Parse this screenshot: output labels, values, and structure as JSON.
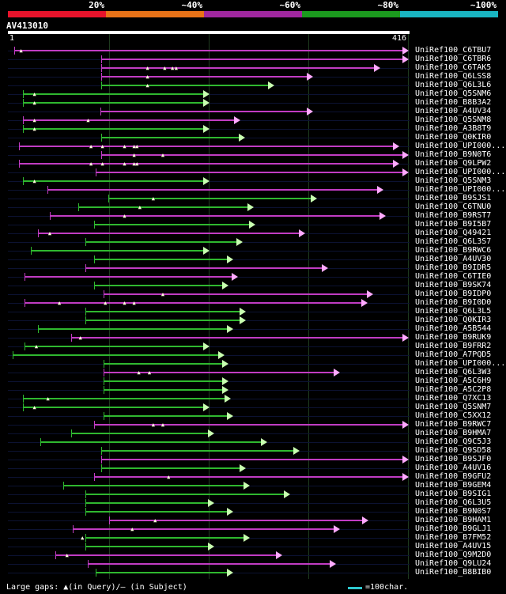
{
  "legend": {
    "labels": [
      "20%",
      "~40%",
      "~60%",
      "~80%",
      "~100%"
    ],
    "colors": [
      "#e8132b",
      "#e97318",
      "#a0279f",
      "#1b9a1e",
      "#19b5c2"
    ]
  },
  "query": {
    "title": "AV413010",
    "start_label": "1",
    "end_label": "416",
    "length": 416
  },
  "colors": {
    "magenta": "#c13cc3",
    "green": "#2fb82f",
    "tri_magenta": "#ffaaff",
    "tri_green": "#c8ffb0"
  },
  "hits": [
    {
      "label": "UniRef100_C6TBU7",
      "color": "magenta",
      "start": 5,
      "end": 416,
      "gaps": [
        12
      ]
    },
    {
      "label": "UniRef100_C6TBR6",
      "color": "magenta",
      "start": 96,
      "end": 416,
      "gaps": []
    },
    {
      "label": "UniRef100_C6TAK5",
      "color": "magenta",
      "start": 96,
      "end": 386,
      "gaps": [
        144,
        162,
        170,
        174
      ]
    },
    {
      "label": "UniRef100_Q6LSS8",
      "color": "magenta",
      "start": 96,
      "end": 316,
      "gaps": [
        144
      ]
    },
    {
      "label": "UniRef100_Q6L3L6",
      "color": "green",
      "start": 96,
      "end": 276,
      "gaps": [
        144
      ]
    },
    {
      "label": "UniRef100_Q5SNM6",
      "color": "green",
      "start": 14,
      "end": 208,
      "gaps": [
        26
      ]
    },
    {
      "label": "UniRef100_B8B3A2",
      "color": "green",
      "start": 14,
      "end": 208,
      "gaps": [
        26
      ]
    },
    {
      "label": "UniRef100_A4UV34",
      "color": "magenta",
      "start": 95,
      "end": 316,
      "gaps": []
    },
    {
      "label": "UniRef100_Q5SNM8",
      "color": "magenta",
      "start": 14,
      "end": 240,
      "gaps": [
        26,
        82
      ]
    },
    {
      "label": "UniRef100_A3B8T9",
      "color": "green",
      "start": 14,
      "end": 208,
      "gaps": [
        26
      ]
    },
    {
      "label": "UniRef100_Q0KIR0",
      "color": "green",
      "start": 96,
      "end": 245,
      "gaps": []
    },
    {
      "label": "UniRef100_UPI000...",
      "color": "magenta",
      "start": 10,
      "end": 406,
      "gaps": [
        85,
        97,
        120,
        130,
        133
      ]
    },
    {
      "label": "UniRef100_B9N0T6",
      "color": "magenta",
      "start": 96,
      "end": 416,
      "gaps": [
        130,
        160
      ]
    },
    {
      "label": "UniRef100_Q9LPW2",
      "color": "magenta",
      "start": 10,
      "end": 406,
      "gaps": [
        85,
        97,
        120,
        130,
        133
      ]
    },
    {
      "label": "UniRef100_UPI000...",
      "color": "magenta",
      "start": 90,
      "end": 416,
      "gaps": []
    },
    {
      "label": "UniRef100_Q5SNM3",
      "color": "green",
      "start": 14,
      "end": 208,
      "gaps": [
        26
      ]
    },
    {
      "label": "UniRef100_UPI000...",
      "color": "magenta",
      "start": 40,
      "end": 390,
      "gaps": []
    },
    {
      "label": "UniRef100_B9SJS1",
      "color": "green",
      "start": 103,
      "end": 320,
      "gaps": [
        150
      ]
    },
    {
      "label": "UniRef100_C6TNU0",
      "color": "green",
      "start": 72,
      "end": 254,
      "gaps": [
        136
      ]
    },
    {
      "label": "UniRef100_B9RST7",
      "color": "magenta",
      "start": 42,
      "end": 392,
      "gaps": [
        120
      ]
    },
    {
      "label": "UniRef100_B9I5B7",
      "color": "green",
      "start": 88,
      "end": 256,
      "gaps": []
    },
    {
      "label": "UniRef100_Q49421",
      "color": "magenta",
      "start": 30,
      "end": 308,
      "gaps": [
        42
      ]
    },
    {
      "label": "UniRef100_Q6L3S7",
      "color": "green",
      "start": 79,
      "end": 243,
      "gaps": []
    },
    {
      "label": "UniRef100_B9RWC6",
      "color": "green",
      "start": 22,
      "end": 208,
      "gaps": []
    },
    {
      "label": "UniRef100_A4UV30",
      "color": "green",
      "start": 88,
      "end": 233,
      "gaps": []
    },
    {
      "label": "UniRef100_B9IDR5",
      "color": "magenta",
      "start": 79,
      "end": 332,
      "gaps": []
    },
    {
      "label": "UniRef100_C6TIE0",
      "color": "magenta",
      "start": 16,
      "end": 238,
      "gaps": []
    },
    {
      "label": "UniRef100_B9SK74",
      "color": "green",
      "start": 88,
      "end": 228,
      "gaps": []
    },
    {
      "label": "UniRef100_B9IDP0",
      "color": "magenta",
      "start": 98,
      "end": 379,
      "gaps": [
        160
      ]
    },
    {
      "label": "UniRef100_B9I0D0",
      "color": "magenta",
      "start": 16,
      "end": 373,
      "gaps": [
        52,
        100,
        120,
        130
      ]
    },
    {
      "label": "UniRef100_Q6L3L5",
      "color": "green",
      "start": 79,
      "end": 246,
      "gaps": []
    },
    {
      "label": "UniRef100_Q0KIR3",
      "color": "green",
      "start": 79,
      "end": 246,
      "gaps": []
    },
    {
      "label": "UniRef100_A5B544",
      "color": "green",
      "start": 30,
      "end": 233,
      "gaps": []
    },
    {
      "label": "UniRef100_B9RUK9",
      "color": "magenta",
      "start": 64,
      "end": 416,
      "gaps": [
        74
      ]
    },
    {
      "label": "UniRef100_B9FRR2",
      "color": "green",
      "start": 16,
      "end": 208,
      "gaps": [
        28
      ]
    },
    {
      "label": "UniRef100_A7PQD5",
      "color": "green",
      "start": 3,
      "end": 224,
      "gaps": []
    },
    {
      "label": "UniRef100_UPI000...",
      "color": "green",
      "start": 98,
      "end": 228,
      "gaps": []
    },
    {
      "label": "UniRef100_Q6L3W3",
      "color": "magenta",
      "start": 98,
      "end": 344,
      "gaps": [
        135,
        146
      ]
    },
    {
      "label": "UniRef100_A5C6H9",
      "color": "green",
      "start": 98,
      "end": 228,
      "gaps": []
    },
    {
      "label": "UniRef100_A5C2P8",
      "color": "green",
      "start": 98,
      "end": 228,
      "gaps": []
    },
    {
      "label": "UniRef100_Q7XC13",
      "color": "green",
      "start": 14,
      "end": 230,
      "gaps": [
        40
      ]
    },
    {
      "label": "UniRef100_Q5SNM7",
      "color": "green",
      "start": 14,
      "end": 208,
      "gaps": [
        26
      ]
    },
    {
      "label": "UniRef100_C5XX12",
      "color": "green",
      "start": 98,
      "end": 233,
      "gaps": []
    },
    {
      "label": "UniRef100_B9RWC7",
      "color": "magenta",
      "start": 88,
      "end": 416,
      "gaps": [
        150,
        160
      ]
    },
    {
      "label": "UniRef100_B9HMA7",
      "color": "green",
      "start": 64,
      "end": 213,
      "gaps": []
    },
    {
      "label": "UniRef100_Q9C5J3",
      "color": "green",
      "start": 32,
      "end": 268,
      "gaps": []
    },
    {
      "label": "UniRef100_Q9SD58",
      "color": "green",
      "start": 96,
      "end": 302,
      "gaps": []
    },
    {
      "label": "UniRef100_B9SJF0",
      "color": "magenta",
      "start": 96,
      "end": 416,
      "gaps": []
    },
    {
      "label": "UniRef100_A4UV16",
      "color": "green",
      "start": 96,
      "end": 246,
      "gaps": []
    },
    {
      "label": "UniRef100_B9GFU2",
      "color": "magenta",
      "start": 88,
      "end": 416,
      "gaps": [
        166
      ]
    },
    {
      "label": "UniRef100_B9GEM4",
      "color": "green",
      "start": 56,
      "end": 250,
      "gaps": []
    },
    {
      "label": "UniRef100_B9SIG1",
      "color": "green",
      "start": 79,
      "end": 292,
      "gaps": []
    },
    {
      "label": "UniRef100_Q6L3U5",
      "color": "green",
      "start": 79,
      "end": 213,
      "gaps": []
    },
    {
      "label": "UniRef100_B9N0S7",
      "color": "green",
      "start": 79,
      "end": 233,
      "gaps": []
    },
    {
      "label": "UniRef100_B9HAM1",
      "color": "magenta",
      "start": 104,
      "end": 374,
      "gaps": [
        152
      ]
    },
    {
      "label": "UniRef100_B9GLJ1",
      "color": "magenta",
      "start": 66,
      "end": 344,
      "gaps": [
        128
      ]
    },
    {
      "label": "UniRef100_B7FM52",
      "color": "green",
      "start": 79,
      "end": 250,
      "gaps": [
        76
      ]
    },
    {
      "label": "UniRef100_A4UV15",
      "color": "green",
      "start": 79,
      "end": 213,
      "gaps": []
    },
    {
      "label": "UniRef100_Q9M2D0",
      "color": "magenta",
      "start": 48,
      "end": 284,
      "gaps": [
        60
      ]
    },
    {
      "label": "UniRef100_Q9LU24",
      "color": "magenta",
      "start": 82,
      "end": 340,
      "gaps": []
    },
    {
      "label": "UniRef100_B8BIB0",
      "color": "green",
      "start": 90,
      "end": 233,
      "gaps": []
    }
  ],
  "footer": {
    "gaps_text": "Large gaps: ▲(in Query)/– (in Subject)",
    "scale_text": "=100char."
  }
}
